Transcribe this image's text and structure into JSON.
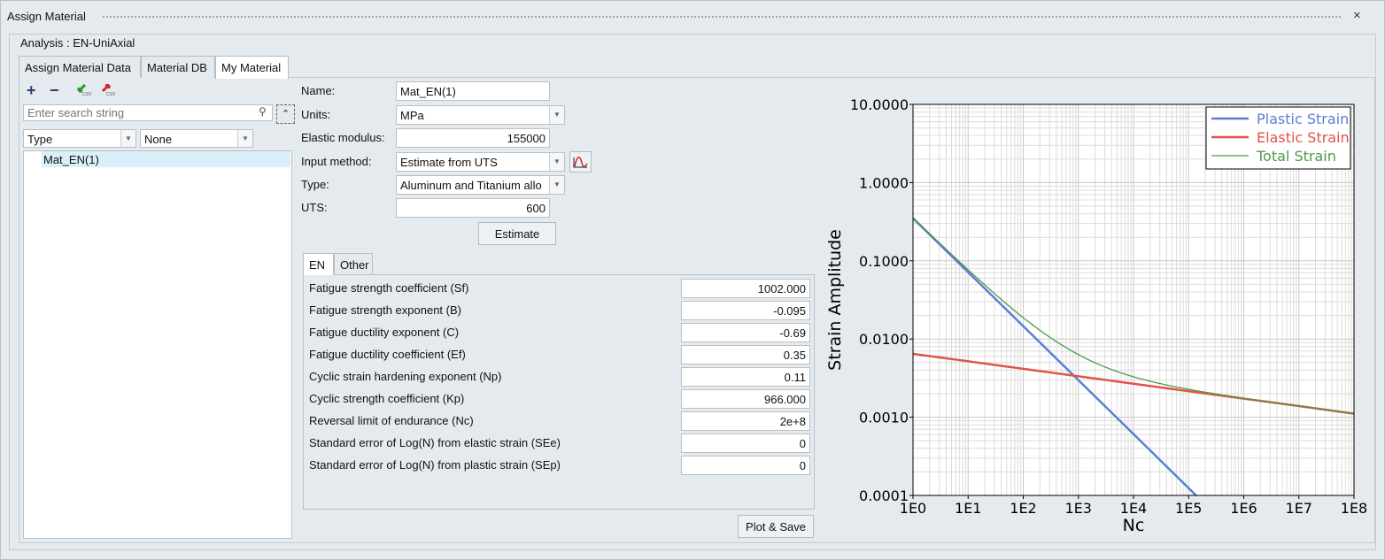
{
  "window": {
    "title": "Assign Material",
    "close_icon": "×"
  },
  "analysis_label": "Analysis : EN-UniAxial",
  "tabs": [
    {
      "label": "Assign Material Data"
    },
    {
      "label": "Material DB"
    },
    {
      "label": "My Material"
    }
  ],
  "left": {
    "toolbar": {
      "add": "+",
      "remove": "−",
      "import_csv": "CSV",
      "export_csv": "CSV"
    },
    "search_placeholder": "Enter search string",
    "filter_type": "Type",
    "filter_value": "None",
    "items": [
      "Mat_EN(1)"
    ]
  },
  "form": {
    "name_label": "Name:",
    "name": "Mat_EN(1)",
    "units_label": "Units:",
    "units": "MPa",
    "elastic_label": "Elastic modulus:",
    "elastic": "155000",
    "input_method_label": "Input method:",
    "input_method": "Estimate from UTS",
    "type_label": "Type:",
    "type": "Aluminum and Titanium allo",
    "uts_label": "UTS:",
    "uts": "600",
    "estimate_button": "Estimate"
  },
  "inner_tabs": [
    {
      "label": "EN"
    },
    {
      "label": "Other"
    }
  ],
  "params": [
    {
      "label": "Fatigue strength coefficient (Sf)",
      "value": "1002.000"
    },
    {
      "label": "Fatigue strength exponent (B)",
      "value": "-0.095"
    },
    {
      "label": "Fatigue ductility exponent (C)",
      "value": "-0.69"
    },
    {
      "label": "Fatigue ductility coefficient (Ef)",
      "value": "0.35"
    },
    {
      "label": "Cyclic strain hardening exponent (Np)",
      "value": "0.11"
    },
    {
      "label": "Cyclic strength coefficient (Kp)",
      "value": "966.000"
    },
    {
      "label": "Reversal limit of endurance (Nc)",
      "value": "2e+8"
    },
    {
      "label": "Standard error of Log(N) from elastic strain (SEe)",
      "value": "0"
    },
    {
      "label": "Standard error of Log(N) from plastic strain (SEp)",
      "value": "0"
    }
  ],
  "plot_save_button": "Plot & Save",
  "chart_data": {
    "type": "line",
    "xlabel": "Nc",
    "ylabel": "Strain Amplitude",
    "xscale": "log",
    "yscale": "log",
    "xlim": [
      1,
      100000000
    ],
    "ylim": [
      0.0001,
      10
    ],
    "xticks": [
      "1E0",
      "1E1",
      "1E2",
      "1E3",
      "1E4",
      "1E5",
      "1E6",
      "1E7",
      "1E8"
    ],
    "yticks": [
      "0.0001",
      "0.0010",
      "0.0100",
      "0.1000",
      "1.0000",
      "10.0000"
    ],
    "grid": true,
    "legend": "top-right",
    "x": [
      1,
      10,
      100,
      1000,
      10000,
      100000,
      1000000,
      10000000,
      100000000
    ],
    "series": [
      {
        "name": "Plastic Strain",
        "color": "#5b7fd6",
        "values": [
          0.35,
          0.0715,
          0.0146,
          0.00298,
          0.000609,
          0.000124,
          null,
          null,
          null
        ]
      },
      {
        "name": "Elastic Strain",
        "color": "#e0544a",
        "values": [
          0.00646,
          0.00519,
          0.00416,
          0.00334,
          0.00268,
          0.00215,
          0.00173,
          0.00139,
          0.00111
        ]
      },
      {
        "name": "Total Strain",
        "color": "#4e9a48",
        "values": [
          0.3565,
          0.0767,
          0.0188,
          0.00632,
          0.00329,
          0.00227,
          0.00176,
          0.0014,
          0.00111
        ]
      }
    ]
  }
}
